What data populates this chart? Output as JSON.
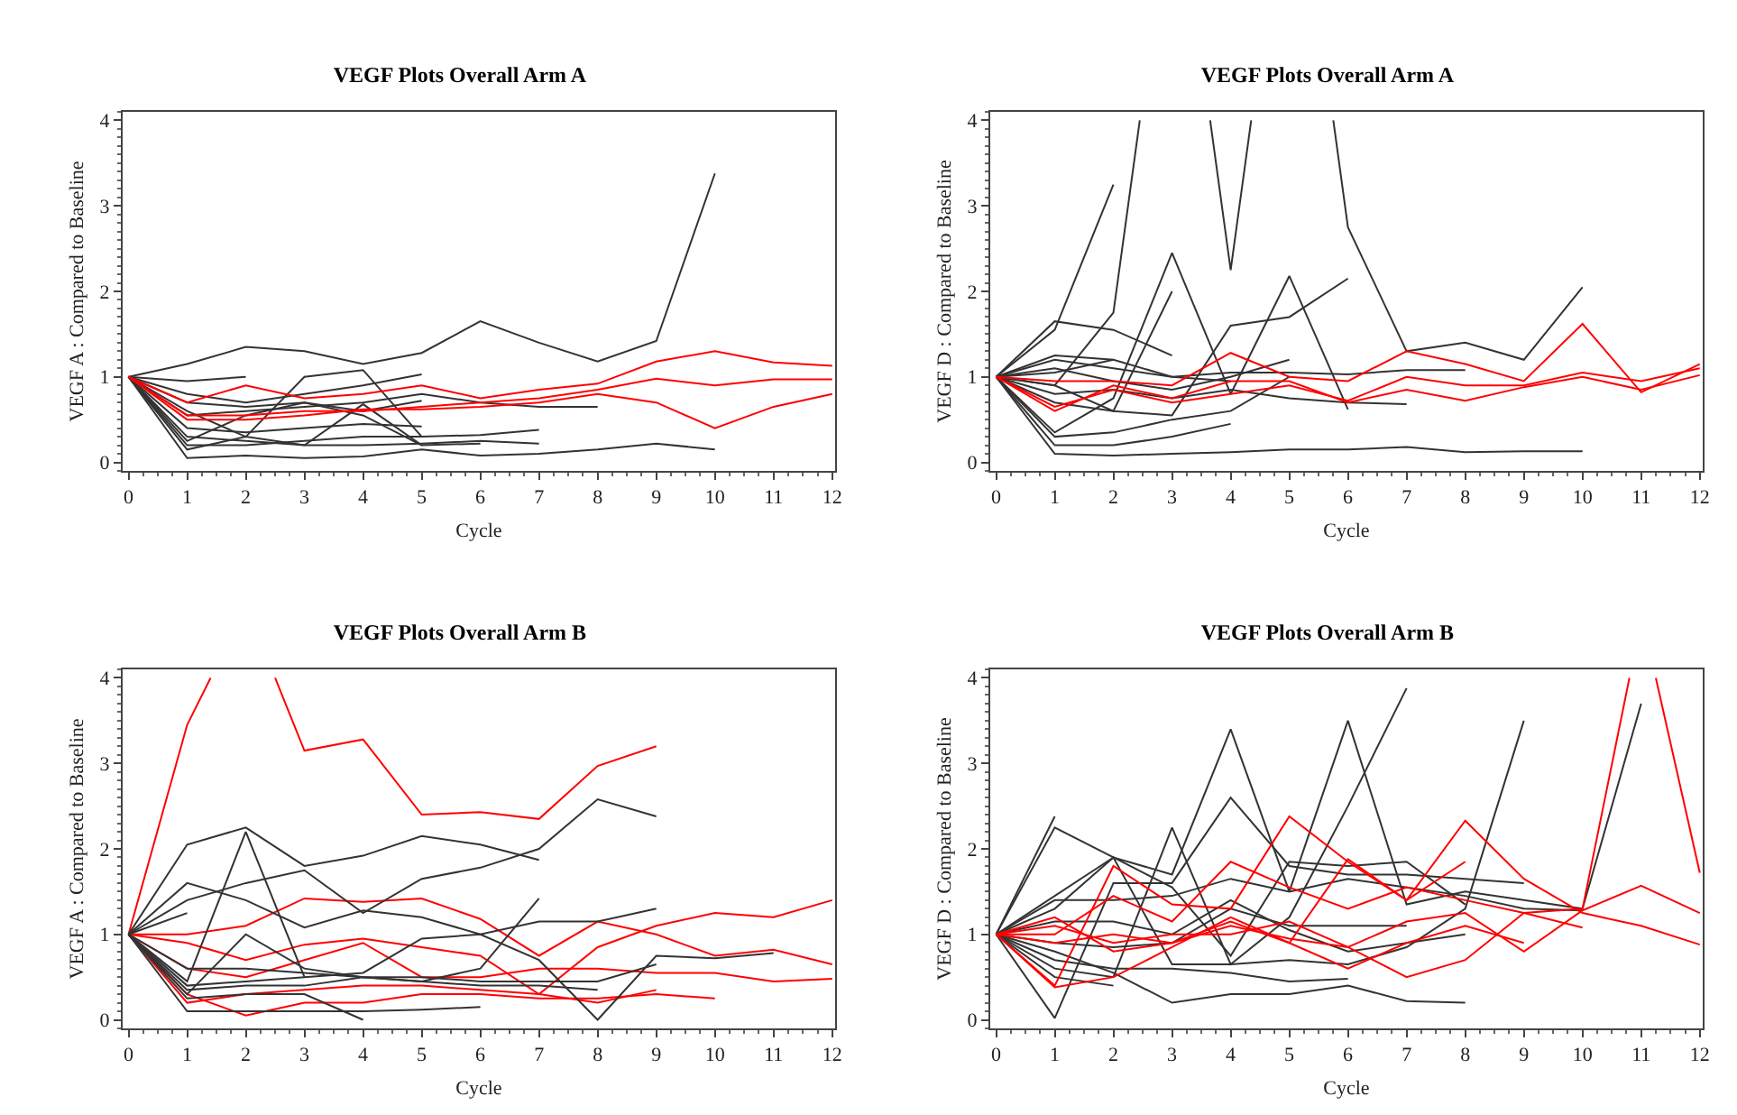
{
  "chart_data": [
    {
      "type": "line",
      "title": "VEGF Plots Overall Arm A",
      "xlabel": "Cycle",
      "ylabel": "VEGF A : Compared to Baseline",
      "x": [
        0,
        1,
        2,
        3,
        4,
        5,
        6,
        7,
        8,
        9,
        10,
        11,
        12
      ],
      "xlim": [
        -0.1,
        12.05
      ],
      "xticks": [
        0,
        1,
        2,
        3,
        4,
        5,
        6,
        7,
        8,
        9,
        10,
        11,
        12
      ],
      "ylim": [
        -0.1,
        4.1
      ],
      "yticks": [
        0,
        1,
        2,
        3,
        4
      ],
      "grid": false,
      "marker": "none",
      "line_style": "solid",
      "series": [
        {
          "color": "#333333",
          "values": [
            1,
            1.15,
            1.35,
            1.3,
            1.15,
            1.28,
            1.65,
            1.4,
            1.18,
            1.42,
            3.38,
            null,
            null
          ]
        },
        {
          "color": "#333333",
          "values": [
            1,
            0.95,
            1.0,
            null,
            null,
            null,
            null,
            null,
            null,
            null,
            null,
            null,
            null
          ]
        },
        {
          "color": "#333333",
          "values": [
            1,
            0.6,
            0.3,
            1.0,
            1.08,
            0.3,
            null,
            null,
            null,
            null,
            null,
            null,
            null
          ]
        },
        {
          "color": "#333333",
          "values": [
            1,
            0.8,
            0.7,
            0.8,
            0.9,
            1.03,
            null,
            null,
            null,
            null,
            null,
            null,
            null
          ]
        },
        {
          "color": "#333333",
          "values": [
            1,
            0.05,
            0.08,
            0.05,
            0.07,
            0.15,
            0.08,
            0.1,
            0.15,
            0.22,
            0.15,
            null,
            null
          ]
        },
        {
          "color": "#333333",
          "values": [
            1,
            0.3,
            0.25,
            0.2,
            0.68,
            0.2,
            0.22,
            null,
            null,
            null,
            null,
            null,
            null
          ]
        },
        {
          "color": "#333333",
          "values": [
            1,
            0.2,
            0.2,
            0.25,
            0.3,
            0.3,
            0.32,
            0.38,
            null,
            null,
            null,
            null,
            null
          ]
        },
        {
          "color": "#333333",
          "values": [
            1,
            0.55,
            0.6,
            0.65,
            0.7,
            0.8,
            0.7,
            0.65,
            0.65,
            null,
            null,
            null,
            null
          ]
        },
        {
          "color": "#333333",
          "values": [
            1,
            0.4,
            0.35,
            0.4,
            0.45,
            0.42,
            null,
            null,
            null,
            null,
            null,
            null,
            null
          ]
        },
        {
          "color": "#333333",
          "values": [
            1,
            0.15,
            0.3,
            0.2,
            0.2,
            0.22,
            0.25,
            0.22,
            null,
            null,
            null,
            null,
            null
          ]
        },
        {
          "color": "#333333",
          "values": [
            1,
            0.7,
            0.65,
            0.7,
            0.6,
            0.72,
            null,
            null,
            null,
            null,
            null,
            null,
            null
          ]
        },
        {
          "color": "#333333",
          "values": [
            1,
            0.25,
            0.55,
            0.7,
            0.55,
            0.2,
            null,
            null,
            null,
            null,
            null,
            null,
            null
          ]
        },
        {
          "color": "#ff0000",
          "values": [
            1,
            0.7,
            0.9,
            0.75,
            0.8,
            0.9,
            0.75,
            0.85,
            0.92,
            1.18,
            1.3,
            1.17,
            1.13
          ]
        },
        {
          "color": "#ff0000",
          "values": [
            1,
            0.55,
            0.55,
            0.6,
            0.6,
            0.65,
            0.7,
            0.75,
            0.85,
            0.98,
            0.9,
            0.97,
            0.97
          ]
        },
        {
          "color": "#ff0000",
          "values": [
            1,
            0.5,
            0.5,
            0.55,
            0.62,
            0.62,
            0.65,
            0.7,
            0.8,
            0.7,
            0.4,
            0.65,
            0.8
          ]
        }
      ]
    },
    {
      "type": "line",
      "title": "VEGF Plots Overall Arm A",
      "xlabel": "Cycle",
      "ylabel": "VEGF D : Compared to Baseline",
      "x": [
        0,
        1,
        2,
        3,
        4,
        5,
        6,
        7,
        8,
        9,
        10,
        11,
        12
      ],
      "xlim": [
        -0.1,
        12.05
      ],
      "xticks": [
        0,
        1,
        2,
        3,
        4,
        5,
        6,
        7,
        8,
        9,
        10,
        11,
        12
      ],
      "ylim": [
        -0.1,
        4.1
      ],
      "yticks": [
        0,
        1,
        2,
        3,
        4
      ],
      "grid": false,
      "marker": "none",
      "line_style": "solid",
      "series": [
        {
          "color": "#333333",
          "values": [
            1,
            1.55,
            3.25,
            null,
            null,
            null,
            null,
            null,
            null,
            null,
            null,
            null,
            null
          ]
        },
        {
          "color": "#333333",
          "x": [
            0,
            1,
            2,
            2.45
          ],
          "values": [
            1,
            0.9,
            1.75,
            4.0
          ]
        },
        {
          "color": "#333333",
          "x": [
            0,
            1,
            2,
            3,
            3.65,
            4,
            4.35
          ],
          "values": [
            1,
            1.05,
            1.2,
            null,
            4.0,
            2.25,
            4.0
          ]
        },
        {
          "color": "#333333",
          "x": [
            0,
            1,
            2,
            3,
            4,
            5,
            5.75,
            6,
            7,
            8,
            9,
            10
          ],
          "values": [
            1,
            1.2,
            1.1,
            1.0,
            0.95,
            null,
            4.0,
            2.75,
            1.3,
            1.4,
            1.2,
            2.05
          ]
        },
        {
          "color": "#333333",
          "values": [
            1,
            1.65,
            1.55,
            1.25,
            null,
            null,
            null,
            null,
            null,
            null,
            null,
            null,
            null
          ]
        },
        {
          "color": "#333333",
          "values": [
            1,
            0.35,
            0.75,
            2.45,
            0.8,
            2.18,
            0.62,
            null,
            null,
            null,
            null,
            null,
            null
          ]
        },
        {
          "color": "#333333",
          "values": [
            1,
            0.9,
            0.6,
            2.0,
            null,
            null,
            null,
            null,
            null,
            null,
            null,
            null,
            null
          ]
        },
        {
          "color": "#333333",
          "values": [
            1,
            0.7,
            0.6,
            0.55,
            1.6,
            1.7,
            2.15,
            null,
            null,
            null,
            null,
            null,
            null
          ]
        },
        {
          "color": "#333333",
          "values": [
            1,
            0.1,
            0.08,
            0.1,
            0.12,
            0.15,
            0.15,
            0.18,
            0.12,
            0.13,
            0.13,
            null,
            null
          ]
        },
        {
          "color": "#333333",
          "values": [
            1,
            0.2,
            0.2,
            0.3,
            0.45,
            null,
            null,
            null,
            null,
            null,
            null,
            null,
            null
          ]
        },
        {
          "color": "#333333",
          "values": [
            1,
            0.3,
            0.35,
            0.5,
            0.6,
            1.0,
            null,
            null,
            null,
            null,
            null,
            null,
            null
          ]
        },
        {
          "color": "#333333",
          "values": [
            1,
            1.25,
            1.2,
            1.0,
            1.05,
            1.05,
            1.03,
            1.08,
            1.08,
            null,
            null,
            null,
            null
          ]
        },
        {
          "color": "#333333",
          "values": [
            1,
            0.8,
            0.85,
            0.75,
            0.85,
            0.75,
            0.7,
            0.68,
            null,
            null,
            null,
            null,
            null
          ]
        },
        {
          "color": "#333333",
          "values": [
            1,
            1.1,
            0.95,
            0.85,
            1.0,
            1.2,
            null,
            null,
            null,
            null,
            null,
            null,
            null
          ]
        },
        {
          "color": "#ff0000",
          "values": [
            1,
            0.95,
            0.95,
            0.9,
            1.28,
            1.0,
            0.95,
            1.3,
            1.15,
            0.95,
            1.62,
            0.82,
            1.15
          ]
        },
        {
          "color": "#ff0000",
          "values": [
            1,
            0.65,
            0.85,
            0.7,
            0.8,
            0.9,
            0.72,
            1.0,
            0.9,
            0.9,
            1.05,
            0.95,
            1.1
          ]
        },
        {
          "color": "#ff0000",
          "values": [
            1,
            0.6,
            0.9,
            0.75,
            0.95,
            0.95,
            0.7,
            0.85,
            0.72,
            0.88,
            1.0,
            0.85,
            1.02
          ]
        }
      ]
    },
    {
      "type": "line",
      "title": "VEGF Plots Overall Arm B",
      "xlabel": "Cycle",
      "ylabel": "VEGF A : Compared to Baseline",
      "x": [
        0,
        1,
        2,
        3,
        4,
        5,
        6,
        7,
        8,
        9,
        10,
        11,
        12
      ],
      "xlim": [
        -0.1,
        12.05
      ],
      "xticks": [
        0,
        1,
        2,
        3,
        4,
        5,
        6,
        7,
        8,
        9,
        10,
        11,
        12
      ],
      "ylim": [
        -0.1,
        4.1
      ],
      "yticks": [
        0,
        1,
        2,
        3,
        4
      ],
      "grid": false,
      "marker": "none",
      "line_style": "solid",
      "series": [
        {
          "color": "#ff0000",
          "x": [
            0,
            1,
            1.4,
            2,
            2.5,
            3,
            4,
            5,
            6,
            7,
            8,
            9
          ],
          "values": [
            1,
            3.45,
            4.0,
            null,
            4.0,
            3.15,
            3.28,
            2.4,
            2.43,
            2.35,
            2.97,
            3.2
          ]
        },
        {
          "color": "#ff0000",
          "values": [
            1,
            1.0,
            1.1,
            1.42,
            1.38,
            1.42,
            1.18,
            0.75,
            1.15,
            1.0,
            0.75,
            0.82,
            0.65
          ]
        },
        {
          "color": "#ff0000",
          "values": [
            1,
            0.9,
            0.7,
            0.88,
            0.95,
            0.85,
            0.75,
            0.3,
            0.85,
            1.1,
            1.25,
            1.2,
            1.4
          ]
        },
        {
          "color": "#ff0000",
          "values": [
            1,
            0.2,
            0.3,
            0.35,
            0.4,
            0.4,
            0.35,
            0.3,
            0.2,
            0.35,
            null,
            null,
            null
          ]
        },
        {
          "color": "#ff0000",
          "values": [
            1,
            0.3,
            0.05,
            0.2,
            0.2,
            0.3,
            0.3,
            0.25,
            0.25,
            0.3,
            0.25,
            null,
            null
          ]
        },
        {
          "color": "#ff0000",
          "values": [
            1,
            0.6,
            0.5,
            0.7,
            0.9,
            0.5,
            0.5,
            0.6,
            0.6,
            0.55,
            0.55,
            0.45,
            0.48
          ]
        },
        {
          "color": "#333333",
          "values": [
            1,
            2.05,
            2.25,
            1.8,
            1.92,
            2.15,
            2.05,
            1.87,
            null,
            null,
            null,
            null,
            null
          ]
        },
        {
          "color": "#333333",
          "values": [
            1,
            1.4,
            1.6,
            1.75,
            1.25,
            1.65,
            1.78,
            2.0,
            2.58,
            2.38,
            null,
            null,
            null
          ]
        },
        {
          "color": "#333333",
          "values": [
            1,
            1.6,
            1.4,
            1.08,
            1.28,
            1.2,
            1.0,
            1.15,
            1.15,
            1.3,
            null,
            null,
            null
          ]
        },
        {
          "color": "#333333",
          "values": [
            1,
            0.45,
            2.2,
            0.5,
            null,
            null,
            null,
            null,
            null,
            null,
            null,
            null,
            null
          ]
        },
        {
          "color": "#333333",
          "values": [
            1,
            0.3,
            1.0,
            0.6,
            0.5,
            0.45,
            0.6,
            1.42,
            null,
            null,
            null,
            null,
            null
          ]
        },
        {
          "color": "#333333",
          "values": [
            1,
            0.4,
            0.45,
            0.5,
            0.55,
            0.95,
            1.0,
            0.7,
            0.0,
            0.75,
            0.72,
            0.78,
            null
          ]
        },
        {
          "color": "#333333",
          "values": [
            1,
            1.25,
            null,
            null,
            null,
            null,
            null,
            null,
            null,
            null,
            null,
            null,
            null
          ]
        },
        {
          "color": "#333333",
          "values": [
            1,
            0.1,
            0.1,
            0.1,
            0.1,
            0.12,
            0.15,
            null,
            null,
            null,
            null,
            null,
            null
          ]
        },
        {
          "color": "#333333",
          "values": [
            1,
            0.35,
            0.4,
            0.4,
            0.5,
            0.45,
            0.4,
            0.4,
            0.35,
            null,
            null,
            null,
            null
          ]
        },
        {
          "color": "#333333",
          "values": [
            1,
            0.25,
            0.3,
            0.3,
            0.0,
            null,
            null,
            null,
            null,
            null,
            null,
            null,
            null
          ]
        },
        {
          "color": "#333333",
          "values": [
            1,
            0.6,
            0.6,
            0.55,
            0.5,
            0.5,
            0.45,
            0.45,
            0.45,
            0.65,
            null,
            null,
            null
          ]
        }
      ]
    },
    {
      "type": "line",
      "title": "VEGF Plots Overall Arm B",
      "xlabel": "Cycle",
      "ylabel": "VEGF D : Compared to Baseline",
      "x": [
        0,
        1,
        2,
        3,
        4,
        5,
        6,
        7,
        8,
        9,
        10,
        11,
        12
      ],
      "xlim": [
        -0.1,
        12.05
      ],
      "xticks": [
        0,
        1,
        2,
        3,
        4,
        5,
        6,
        7,
        8,
        9,
        10,
        11,
        12
      ],
      "ylim": [
        -0.1,
        4.1
      ],
      "yticks": [
        0,
        1,
        2,
        3,
        4
      ],
      "grid": false,
      "marker": "none",
      "line_style": "solid",
      "series": [
        {
          "color": "#333333",
          "values": [
            1,
            2.38,
            null,
            null,
            null,
            null,
            null,
            null,
            null,
            null,
            null,
            null,
            null
          ]
        },
        {
          "color": "#333333",
          "values": [
            1,
            2.25,
            1.9,
            1.55,
            0.75,
            1.85,
            1.8,
            1.85,
            1.35,
            null,
            null,
            null,
            null
          ]
        },
        {
          "color": "#333333",
          "values": [
            1,
            1.45,
            1.9,
            1.7,
            3.4,
            1.5,
            3.5,
            1.35,
            1.5,
            1.4,
            1.3,
            3.7,
            null
          ]
        },
        {
          "color": "#333333",
          "values": [
            1,
            0.02,
            1.6,
            1.6,
            2.6,
            1.8,
            1.7,
            1.7,
            1.65,
            1.6,
            null,
            null,
            null
          ]
        },
        {
          "color": "#333333",
          "values": [
            1,
            0.6,
            0.5,
            2.25,
            0.65,
            1.2,
            2.5,
            3.88,
            null,
            null,
            null,
            null,
            null
          ]
        },
        {
          "color": "#333333",
          "values": [
            1,
            1.3,
            1.9,
            0.65,
            0.65,
            0.7,
            0.65,
            0.85,
            1.3,
            3.5,
            null,
            null,
            null
          ]
        },
        {
          "color": "#333333",
          "values": [
            1,
            0.8,
            0.55,
            0.2,
            0.3,
            0.3,
            0.4,
            0.22,
            0.2,
            null,
            null,
            null,
            null
          ]
        },
        {
          "color": "#333333",
          "values": [
            1,
            0.5,
            0.4,
            null,
            null,
            null,
            null,
            null,
            null,
            null,
            null,
            null,
            null
          ]
        },
        {
          "color": "#333333",
          "values": [
            1,
            0.9,
            0.85,
            0.9,
            1.3,
            1.1,
            1.1,
            1.1,
            null,
            null,
            null,
            null,
            null
          ]
        },
        {
          "color": "#333333",
          "values": [
            1,
            0.7,
            0.6,
            0.6,
            0.55,
            0.45,
            0.48,
            null,
            null,
            null,
            null,
            null,
            null
          ]
        },
        {
          "color": "#333333",
          "values": [
            1,
            1.15,
            1.15,
            1.0,
            1.4,
            1.05,
            0.8,
            0.9,
            1.0,
            null,
            null,
            null,
            null
          ]
        },
        {
          "color": "#333333",
          "values": [
            1,
            1.4,
            1.4,
            1.45,
            1.65,
            1.5,
            1.65,
            1.55,
            1.45,
            1.3,
            1.28,
            null,
            null
          ]
        },
        {
          "color": "#ff0000",
          "values": [
            1,
            0.4,
            1.8,
            1.35,
            1.3,
            2.38,
            1.85,
            1.4,
            2.33,
            1.65,
            1.25,
            1.1,
            0.88
          ]
        },
        {
          "color": "#ff0000",
          "values": [
            1,
            1.0,
            1.45,
            1.15,
            1.85,
            1.55,
            1.3,
            1.55,
            1.4,
            1.25,
            1.08,
            null,
            null
          ]
        },
        {
          "color": "#ff0000",
          "x": [
            0,
            1,
            2,
            3,
            4,
            5,
            6,
            7,
            8,
            9,
            10,
            10.8,
            11,
            11.25,
            12
          ],
          "values": [
            1,
            1.2,
            0.8,
            0.9,
            1.1,
            0.95,
            0.85,
            0.5,
            0.7,
            1.25,
            1.3,
            4.0,
            null,
            4.0,
            1.72
          ]
        },
        {
          "color": "#ff0000",
          "values": [
            1,
            0.38,
            0.5,
            0.85,
            1.2,
            0.9,
            1.88,
            1.4,
            1.85,
            null,
            null,
            null,
            null
          ]
        },
        {
          "color": "#ff0000",
          "values": [
            1,
            1.1,
            0.9,
            1.0,
            1.0,
            1.15,
            0.85,
            1.15,
            1.25,
            0.8,
            1.28,
            1.57,
            1.25
          ]
        },
        {
          "color": "#ff0000",
          "values": [
            1,
            0.9,
            1.0,
            0.9,
            1.15,
            0.9,
            0.6,
            0.9,
            1.1,
            0.9,
            null,
            null,
            null
          ]
        }
      ]
    }
  ]
}
